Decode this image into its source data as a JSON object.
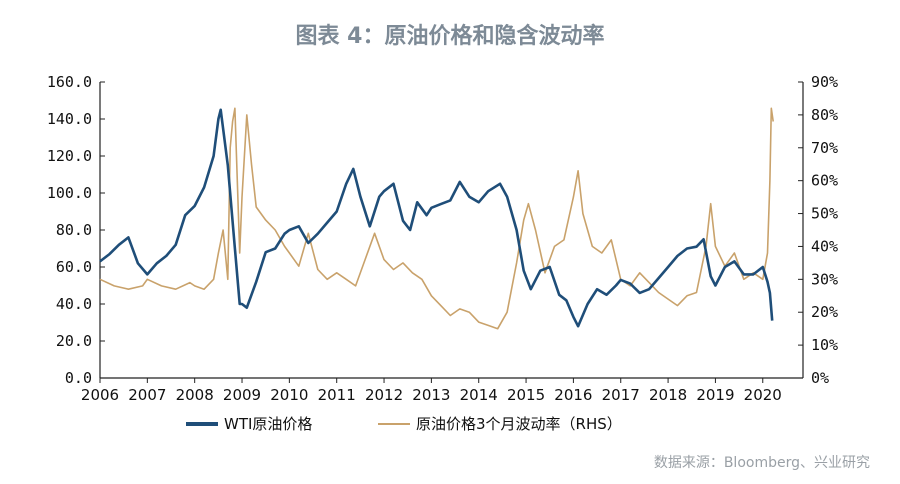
{
  "title": "图表 4：原油价格和隐含波动率",
  "source": "数据来源：Bloomberg、兴业研究",
  "colors": {
    "wti": "#1f4e79",
    "vol": "#c9a26b"
  },
  "chart_data": {
    "type": "line",
    "title": "图表 4：原油价格和隐含波动率",
    "xlabel": "",
    "ylabel": "",
    "x_ticks": [
      "2006",
      "2007",
      "2008",
      "2009",
      "2010",
      "2011",
      "2012",
      "2013",
      "2014",
      "2015",
      "2016",
      "2017",
      "2018",
      "2019",
      "2020"
    ],
    "y_left": {
      "ylim": [
        0,
        160
      ],
      "ticks": [
        "0.0",
        "20.0",
        "40.0",
        "60.0",
        "80.0",
        "100.0",
        "120.0",
        "140.0",
        "160.0"
      ]
    },
    "y_right": {
      "ylim": [
        0,
        90
      ],
      "ticks": [
        "0%",
        "10%",
        "20%",
        "30%",
        "40%",
        "50%",
        "60%",
        "70%",
        "80%",
        "90%"
      ]
    },
    "legend": "bottom",
    "series": [
      {
        "name": "WTI原油价格",
        "axis": "left",
        "points": [
          [
            2006.0,
            63
          ],
          [
            2006.2,
            67
          ],
          [
            2006.4,
            72
          ],
          [
            2006.6,
            76
          ],
          [
            2006.8,
            62
          ],
          [
            2007.0,
            56
          ],
          [
            2007.2,
            62
          ],
          [
            2007.4,
            66
          ],
          [
            2007.6,
            72
          ],
          [
            2007.8,
            88
          ],
          [
            2008.0,
            93
          ],
          [
            2008.2,
            103
          ],
          [
            2008.4,
            120
          ],
          [
            2008.5,
            140
          ],
          [
            2008.55,
            145
          ],
          [
            2008.7,
            115
          ],
          [
            2008.85,
            70
          ],
          [
            2008.95,
            40
          ],
          [
            2009.0,
            40
          ],
          [
            2009.1,
            38
          ],
          [
            2009.3,
            52
          ],
          [
            2009.5,
            68
          ],
          [
            2009.7,
            70
          ],
          [
            2009.9,
            78
          ],
          [
            2010.0,
            80
          ],
          [
            2010.2,
            82
          ],
          [
            2010.4,
            73
          ],
          [
            2010.6,
            78
          ],
          [
            2010.8,
            84
          ],
          [
            2011.0,
            90
          ],
          [
            2011.2,
            105
          ],
          [
            2011.35,
            113
          ],
          [
            2011.5,
            98
          ],
          [
            2011.7,
            82
          ],
          [
            2011.9,
            98
          ],
          [
            2012.0,
            101
          ],
          [
            2012.2,
            105
          ],
          [
            2012.4,
            85
          ],
          [
            2012.55,
            80
          ],
          [
            2012.7,
            95
          ],
          [
            2012.9,
            88
          ],
          [
            2013.0,
            92
          ],
          [
            2013.2,
            94
          ],
          [
            2013.4,
            96
          ],
          [
            2013.6,
            106
          ],
          [
            2013.8,
            98
          ],
          [
            2014.0,
            95
          ],
          [
            2014.2,
            101
          ],
          [
            2014.45,
            105
          ],
          [
            2014.6,
            98
          ],
          [
            2014.8,
            80
          ],
          [
            2014.95,
            58
          ],
          [
            2015.1,
            48
          ],
          [
            2015.3,
            58
          ],
          [
            2015.5,
            60
          ],
          [
            2015.7,
            45
          ],
          [
            2015.85,
            42
          ],
          [
            2016.0,
            33
          ],
          [
            2016.1,
            28
          ],
          [
            2016.3,
            40
          ],
          [
            2016.5,
            48
          ],
          [
            2016.7,
            45
          ],
          [
            2016.9,
            50
          ],
          [
            2017.0,
            53
          ],
          [
            2017.2,
            51
          ],
          [
            2017.4,
            46
          ],
          [
            2017.6,
            48
          ],
          [
            2017.8,
            54
          ],
          [
            2018.0,
            60
          ],
          [
            2018.2,
            66
          ],
          [
            2018.4,
            70
          ],
          [
            2018.6,
            71
          ],
          [
            2018.75,
            75
          ],
          [
            2018.9,
            55
          ],
          [
            2019.0,
            50
          ],
          [
            2019.2,
            60
          ],
          [
            2019.4,
            63
          ],
          [
            2019.6,
            56
          ],
          [
            2019.8,
            56
          ],
          [
            2020.0,
            60
          ],
          [
            2020.1,
            52
          ],
          [
            2020.15,
            46
          ],
          [
            2020.2,
            31
          ]
        ]
      },
      {
        "name": "原油价格3个月波动率（RHS）",
        "axis": "right",
        "points": [
          [
            2006.0,
            30
          ],
          [
            2006.3,
            28
          ],
          [
            2006.6,
            27
          ],
          [
            2006.9,
            28
          ],
          [
            2007.0,
            30
          ],
          [
            2007.3,
            28
          ],
          [
            2007.6,
            27
          ],
          [
            2007.9,
            29
          ],
          [
            2008.0,
            28
          ],
          [
            2008.2,
            27
          ],
          [
            2008.4,
            30
          ],
          [
            2008.5,
            38
          ],
          [
            2008.6,
            45
          ],
          [
            2008.7,
            30
          ],
          [
            2008.75,
            70
          ],
          [
            2008.8,
            78
          ],
          [
            2008.85,
            82
          ],
          [
            2008.9,
            60
          ],
          [
            2008.95,
            38
          ],
          [
            2009.0,
            55
          ],
          [
            2009.1,
            80
          ],
          [
            2009.2,
            65
          ],
          [
            2009.3,
            52
          ],
          [
            2009.5,
            48
          ],
          [
            2009.7,
            45
          ],
          [
            2009.9,
            40
          ],
          [
            2010.0,
            38
          ],
          [
            2010.2,
            34
          ],
          [
            2010.4,
            44
          ],
          [
            2010.6,
            33
          ],
          [
            2010.8,
            30
          ],
          [
            2011.0,
            32
          ],
          [
            2011.2,
            30
          ],
          [
            2011.4,
            28
          ],
          [
            2011.6,
            36
          ],
          [
            2011.8,
            44
          ],
          [
            2012.0,
            36
          ],
          [
            2012.2,
            33
          ],
          [
            2012.4,
            35
          ],
          [
            2012.6,
            32
          ],
          [
            2012.8,
            30
          ],
          [
            2013.0,
            25
          ],
          [
            2013.2,
            22
          ],
          [
            2013.4,
            19
          ],
          [
            2013.6,
            21
          ],
          [
            2013.8,
            20
          ],
          [
            2014.0,
            17
          ],
          [
            2014.2,
            16
          ],
          [
            2014.4,
            15
          ],
          [
            2014.6,
            20
          ],
          [
            2014.8,
            35
          ],
          [
            2014.95,
            48
          ],
          [
            2015.05,
            53
          ],
          [
            2015.2,
            45
          ],
          [
            2015.4,
            32
          ],
          [
            2015.6,
            40
          ],
          [
            2015.8,
            42
          ],
          [
            2016.0,
            55
          ],
          [
            2016.1,
            63
          ],
          [
            2016.2,
            50
          ],
          [
            2016.4,
            40
          ],
          [
            2016.6,
            38
          ],
          [
            2016.8,
            42
          ],
          [
            2017.0,
            30
          ],
          [
            2017.2,
            28
          ],
          [
            2017.4,
            32
          ],
          [
            2017.6,
            29
          ],
          [
            2017.8,
            26
          ],
          [
            2018.0,
            24
          ],
          [
            2018.2,
            22
          ],
          [
            2018.4,
            25
          ],
          [
            2018.6,
            26
          ],
          [
            2018.8,
            40
          ],
          [
            2018.9,
            53
          ],
          [
            2019.0,
            40
          ],
          [
            2019.2,
            34
          ],
          [
            2019.4,
            38
          ],
          [
            2019.6,
            30
          ],
          [
            2019.8,
            32
          ],
          [
            2020.0,
            30
          ],
          [
            2020.1,
            38
          ],
          [
            2020.15,
            60
          ],
          [
            2020.18,
            82
          ],
          [
            2020.22,
            78
          ]
        ]
      }
    ]
  }
}
